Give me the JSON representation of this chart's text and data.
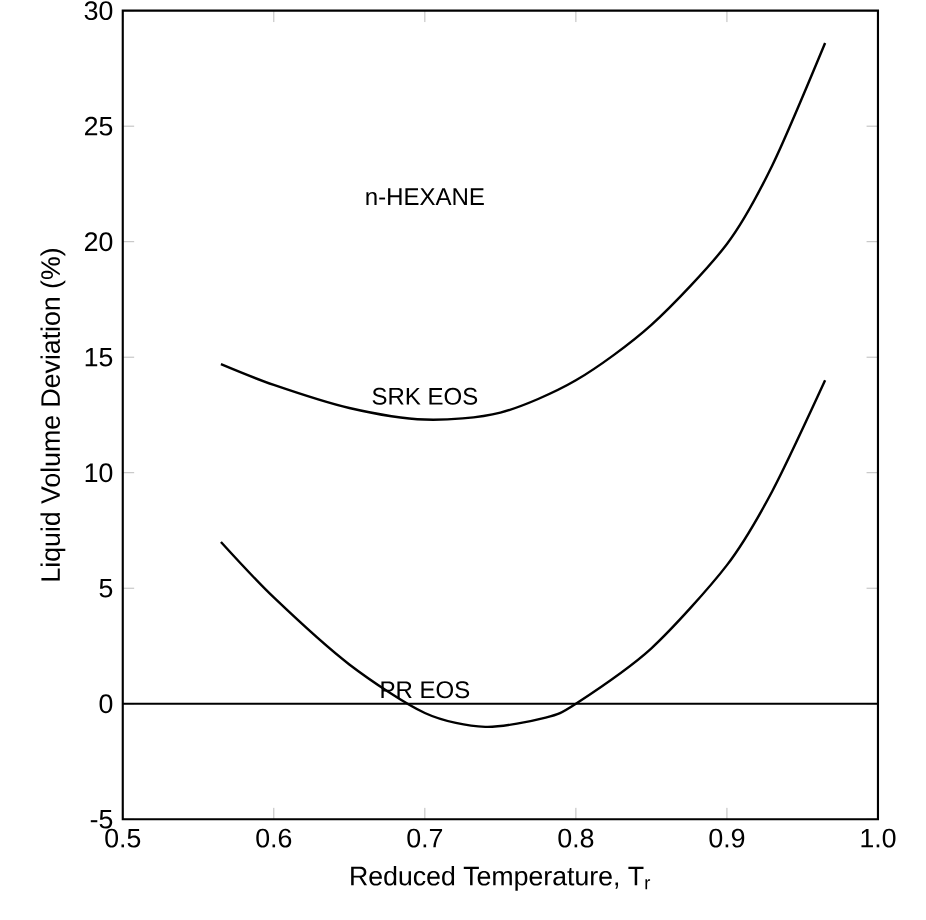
{
  "chart_data": {
    "type": "line",
    "xlabel": "Reduced Temperature, T$_{r}$",
    "ylabel": "Liquid Volume Deviation (%)",
    "annotations": [
      "n-HEXANE"
    ],
    "series": [
      {
        "name": "SRK EOS",
        "color": "#000000",
        "x": [
          0.565,
          0.6,
          0.65,
          0.7,
          0.75,
          0.8,
          0.85,
          0.9,
          0.93,
          0.965
        ],
        "values": [
          14.7,
          13.8,
          12.8,
          12.3,
          12.6,
          14.0,
          16.4,
          19.9,
          23.3,
          28.6
        ]
      },
      {
        "name": "PR EOS",
        "color": "#000000",
        "x": [
          0.565,
          0.6,
          0.65,
          0.7,
          0.74,
          0.78,
          0.8,
          0.85,
          0.9,
          0.93,
          0.965
        ],
        "values": [
          7.0,
          4.6,
          1.7,
          -0.4,
          -1.0,
          -0.6,
          0.0,
          2.4,
          6.0,
          9.2,
          14.0
        ]
      }
    ],
    "ref_lines": [
      {
        "axis": "y",
        "value": 0,
        "color": "#000000"
      }
    ],
    "xlim": [
      0.5,
      1.0
    ],
    "ylim": [
      -5,
      30
    ],
    "xticks": [
      0.5,
      0.6,
      0.7,
      0.8,
      0.9,
      {
        "value": 1.0,
        "label": "1.0"
      }
    ],
    "yticks": [
      -5,
      0,
      5,
      10,
      15,
      20,
      25,
      30
    ],
    "grid": false,
    "legend": false,
    "marker": "none",
    "line_style": "solid"
  }
}
